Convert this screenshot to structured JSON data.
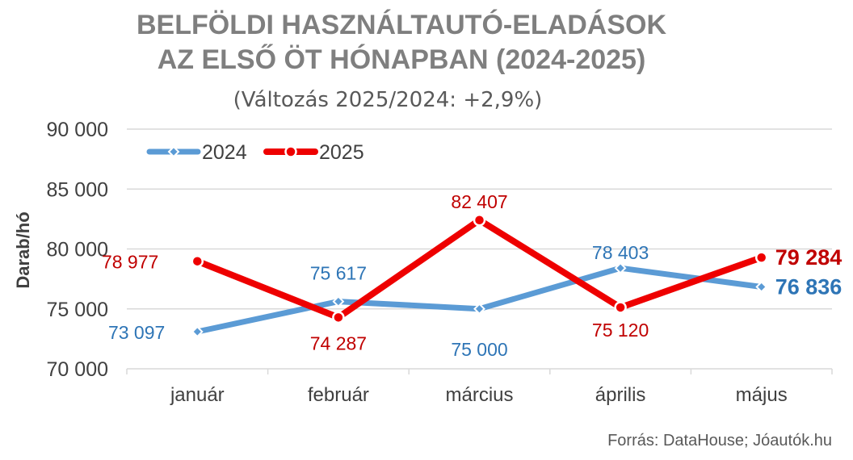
{
  "chart_data": {
    "type": "line",
    "title_line1": "BELFÖLDI HASZNÁLTAUTÓ-ELADÁSOK",
    "title_line2": "AZ ELSŐ ÖT HÓNAPBAN (2024-2025)",
    "subtitle": "(Változás 2025/2024: +2,9%)",
    "ylabel": "Darab/hó",
    "xlabel": "",
    "categories": [
      "január",
      "február",
      "március",
      "április",
      "május"
    ],
    "ylim": [
      70000,
      90000
    ],
    "yticks": [
      70000,
      75000,
      80000,
      85000,
      90000
    ],
    "ytick_labels": [
      "70 000",
      "75 000",
      "80 000",
      "85 000",
      "90 000"
    ],
    "grid": true,
    "legend_position": "top-left",
    "series": [
      {
        "name": "2024",
        "color": "#5b9bd5",
        "label_color": "#2e75b6",
        "marker": "diamond",
        "values": [
          73097,
          75617,
          75000,
          78403,
          76836
        ],
        "labels": [
          "73 097",
          "75 617",
          "75 000",
          "78 403",
          "76 836"
        ]
      },
      {
        "name": "2025",
        "color": "#ee0000",
        "label_color": "#c00000",
        "marker": "circle",
        "values": [
          78977,
          74287,
          82407,
          75120,
          79284
        ],
        "labels": [
          "78 977",
          "74 287",
          "82 407",
          "75 120",
          "79 284"
        ]
      }
    ],
    "source": "Forrás: DataHouse; Jóautók.hu"
  }
}
